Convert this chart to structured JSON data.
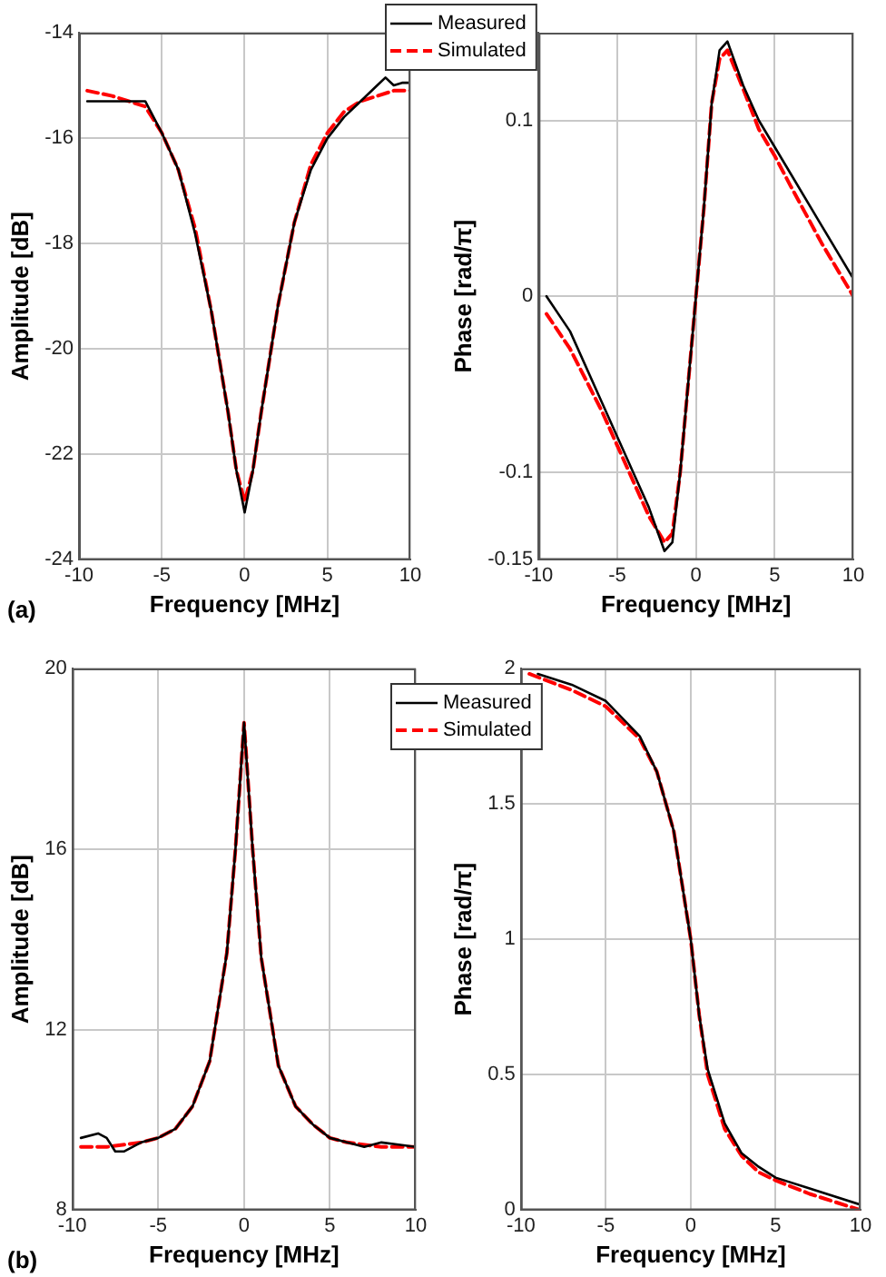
{
  "chart_data": [
    {
      "type": "line",
      "xlabel": "Frequency [MHz]",
      "ylabel": "Amplitude [dB]",
      "xlim": [
        -10,
        10
      ],
      "xticks": [
        -10,
        -5,
        0,
        5,
        10
      ],
      "ylim": [
        -24,
        -14
      ],
      "yticks": [
        -24,
        -22,
        -20,
        -18,
        -16,
        -14
      ],
      "grid": true,
      "legend": "top right",
      "marker": "none",
      "annotations": [
        "(a)"
      ],
      "series": [
        {
          "name": "Measured",
          "color": "#000000",
          "line_style": "solid",
          "x": [
            -9.5,
            -8,
            -6,
            -5,
            -4,
            -3,
            -2,
            -1,
            -0.5,
            0,
            0.5,
            1,
            2,
            3,
            4,
            5,
            6,
            7,
            8,
            8.5,
            9,
            9.5,
            10
          ],
          "values": [
            -15.3,
            -15.3,
            -15.3,
            -15.9,
            -16.6,
            -17.8,
            -19.3,
            -21.2,
            -22.3,
            -23.1,
            -22.3,
            -21.2,
            -19.2,
            -17.6,
            -16.6,
            -16.0,
            -15.6,
            -15.3,
            -15.0,
            -14.85,
            -15.0,
            -14.95,
            -14.95
          ]
        },
        {
          "name": "Simulated",
          "color": "#ff0000",
          "line_style": "dashed",
          "x": [
            -9.5,
            -8,
            -6,
            -5,
            -4,
            -3,
            -2,
            -1,
            -0.5,
            0,
            0.5,
            1,
            2,
            3,
            4,
            5,
            6,
            7,
            8,
            9,
            10
          ],
          "values": [
            -15.1,
            -15.2,
            -15.4,
            -15.9,
            -16.6,
            -17.7,
            -19.3,
            -21.2,
            -22.3,
            -22.9,
            -22.3,
            -21.2,
            -19.2,
            -17.6,
            -16.5,
            -15.9,
            -15.5,
            -15.3,
            -15.2,
            -15.1,
            -15.1
          ]
        }
      ]
    },
    {
      "type": "line",
      "xlabel": "Frequency [MHz]",
      "ylabel": "Phase [rad/π]",
      "xlim": [
        -10,
        10
      ],
      "xticks": [
        -10,
        -5,
        0,
        5,
        10
      ],
      "ylim": [
        -0.15,
        0.15
      ],
      "yticks": [
        -0.15,
        -0.1,
        0,
        0.1
      ],
      "grid": true,
      "marker": "none",
      "series": [
        {
          "color": "#000000",
          "line_style": "solid",
          "x": [
            -9.5,
            -8,
            -6,
            -4,
            -3,
            -2,
            -1.5,
            -1,
            -0.5,
            0,
            0.5,
            1,
            1.5,
            2,
            3,
            4,
            5,
            6,
            8,
            10
          ],
          "values": [
            0.0,
            -0.02,
            -0.06,
            -0.1,
            -0.12,
            -0.145,
            -0.14,
            -0.1,
            -0.05,
            0.0,
            0.05,
            0.11,
            0.14,
            0.145,
            0.12,
            0.1,
            0.085,
            0.07,
            0.04,
            0.01
          ]
        },
        {
          "color": "#ff0000",
          "line_style": "dashed",
          "x": [
            -9.5,
            -8,
            -6,
            -4,
            -3,
            -2,
            -1.5,
            -1,
            -0.5,
            0,
            0.5,
            1,
            1.5,
            2,
            3,
            4,
            5,
            6,
            8,
            10
          ],
          "values": [
            -0.01,
            -0.03,
            -0.065,
            -0.105,
            -0.125,
            -0.14,
            -0.135,
            -0.1,
            -0.05,
            0.0,
            0.05,
            0.11,
            0.135,
            0.14,
            0.118,
            0.095,
            0.08,
            0.063,
            0.03,
            0.0
          ]
        }
      ]
    },
    {
      "type": "line",
      "xlabel": "Frequency [MHz]",
      "ylabel": "Amplitude [dB]",
      "xlim": [
        -10,
        10
      ],
      "xticks": [
        -10,
        -5,
        0,
        5,
        10
      ],
      "ylim": [
        8,
        20
      ],
      "yticks": [
        8,
        12,
        16,
        20
      ],
      "grid": true,
      "legend": "top right",
      "marker": "none",
      "annotations": [
        "(b)"
      ],
      "series": [
        {
          "name": "Measured",
          "color": "#000000",
          "line_style": "solid",
          "x": [
            -9.5,
            -8.5,
            -8,
            -7.5,
            -7,
            -6,
            -5,
            -4,
            -3,
            -2,
            -1,
            -0.5,
            0,
            0.5,
            1,
            2,
            3,
            4,
            5,
            6,
            7,
            8,
            9,
            10
          ],
          "values": [
            9.6,
            9.7,
            9.6,
            9.3,
            9.3,
            9.5,
            9.6,
            9.8,
            10.3,
            11.3,
            13.7,
            16.0,
            18.8,
            16.0,
            13.6,
            11.2,
            10.3,
            9.9,
            9.6,
            9.5,
            9.4,
            9.5,
            9.45,
            9.4
          ]
        },
        {
          "name": "Simulated",
          "color": "#ff0000",
          "line_style": "dashed",
          "x": [
            -9.5,
            -8,
            -6,
            -5,
            -4,
            -3,
            -2,
            -1,
            -0.5,
            0,
            0.5,
            1,
            2,
            3,
            4,
            5,
            6,
            8,
            10
          ],
          "values": [
            9.4,
            9.4,
            9.5,
            9.6,
            9.8,
            10.3,
            11.3,
            13.7,
            16.0,
            18.8,
            16.0,
            13.6,
            11.2,
            10.3,
            9.9,
            9.6,
            9.5,
            9.4,
            9.4
          ]
        }
      ]
    },
    {
      "type": "line",
      "xlabel": "Frequency [MHz]",
      "ylabel": "Phase [rad/π]",
      "xlim": [
        -10,
        10
      ],
      "xticks": [
        -10,
        -5,
        0,
        5,
        10
      ],
      "ylim": [
        0,
        2
      ],
      "yticks": [
        0,
        0.5,
        1,
        1.5,
        2
      ],
      "grid": true,
      "marker": "none",
      "series": [
        {
          "color": "#000000",
          "line_style": "solid",
          "x": [
            -9,
            -7,
            -5,
            -3,
            -2,
            -1,
            -0.5,
            0,
            0.5,
            1,
            2,
            3,
            4,
            5,
            7,
            10
          ],
          "values": [
            1.98,
            1.94,
            1.88,
            1.75,
            1.62,
            1.4,
            1.2,
            1.0,
            0.72,
            0.52,
            0.32,
            0.21,
            0.16,
            0.12,
            0.08,
            0.02
          ]
        },
        {
          "color": "#ff0000",
          "line_style": "dashed",
          "x": [
            -9.5,
            -7,
            -5,
            -3,
            -2,
            -1,
            -0.5,
            0,
            0.5,
            1,
            2,
            3,
            4,
            5,
            7,
            10
          ],
          "values": [
            1.98,
            1.92,
            1.86,
            1.74,
            1.62,
            1.4,
            1.2,
            1.0,
            0.72,
            0.5,
            0.3,
            0.2,
            0.14,
            0.11,
            0.06,
            0.0
          ]
        }
      ]
    }
  ]
}
